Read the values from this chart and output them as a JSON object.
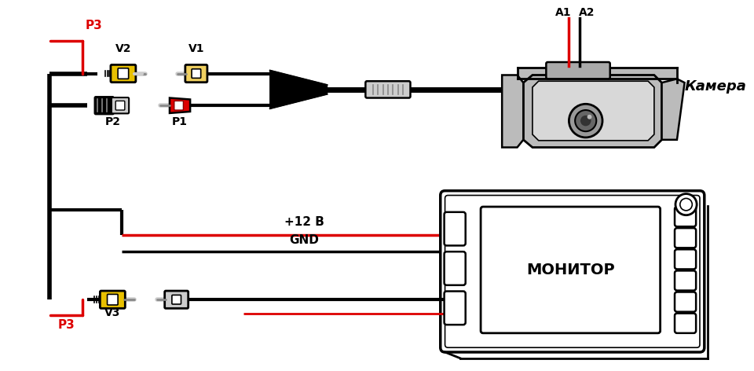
{
  "background_color": "#ffffff",
  "black": "#000000",
  "red": "#dd0000",
  "yellow": "#e8c000",
  "yellow_light": "#f0d060",
  "gray_dark": "#555555",
  "gray_med": "#888888",
  "gray_light": "#cccccc",
  "gray_cam": "#bbbbbb",
  "label_v1": "V1",
  "label_v2": "V2",
  "label_v3": "V3",
  "label_p1": "P1",
  "label_p2": "P2",
  "label_p3": "P3",
  "label_a1": "A1",
  "label_a2": "A2",
  "label_camera": "Камера",
  "label_monitor": "МОНИТОР",
  "label_plus12v": "+12 В",
  "label_gnd": "GND",
  "p3_color": "#dd0000",
  "lw": 3.0,
  "lw_thin": 2.0
}
